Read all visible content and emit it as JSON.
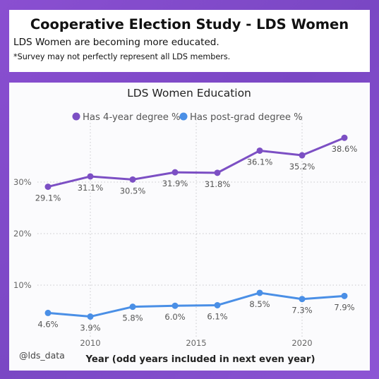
{
  "header": {
    "title": "Cooperative Election Study - LDS Women",
    "subtitle": "LDS Women are becoming more educated.",
    "note": "*Survey may not perfectly represent all LDS members."
  },
  "watermark": "@lds_data",
  "chart_data": {
    "type": "line",
    "title": "LDS Women Education",
    "xlabel": "Year (odd years included in next even year)",
    "ylabel": "",
    "x": [
      2008,
      2010,
      2012,
      2014,
      2016,
      2018,
      2020,
      2022
    ],
    "xlim": [
      2007.5,
      2023
    ],
    "ylim": [
      0,
      40
    ],
    "x_ticks": [
      2010,
      2015,
      2020
    ],
    "y_ticks": [
      10,
      20,
      30
    ],
    "y_tick_format": "%",
    "grid": "dotted",
    "legend_position": "top",
    "series": [
      {
        "name": "Has 4-year degree %",
        "color": "#7c4fc4",
        "values": [
          29.1,
          31.1,
          30.5,
          31.9,
          31.8,
          36.1,
          35.2,
          38.6
        ],
        "labels": [
          "29.1%",
          "31.1%",
          "30.5%",
          "31.9%",
          "31.8%",
          "36.1%",
          "35.2%",
          "38.6%"
        ]
      },
      {
        "name": "Has post-grad degree %",
        "color": "#4a8fe6",
        "values": [
          4.6,
          3.9,
          5.8,
          6.0,
          6.1,
          8.5,
          7.3,
          7.9
        ],
        "labels": [
          "4.6%",
          "3.9%",
          "5.8%",
          "6.0%",
          "6.1%",
          "8.5%",
          "7.3%",
          "7.9%"
        ]
      }
    ]
  }
}
